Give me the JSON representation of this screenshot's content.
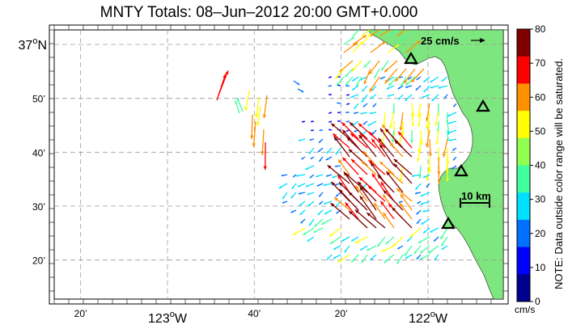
{
  "title": "MNTY Totals: 08–Jun–2012 20:00 GMT+0.000",
  "axes": {
    "lat_labels": [
      {
        "text": "37",
        "sup": "o",
        "suffix": "N",
        "lat": 37.0
      },
      {
        "text": "50’",
        "lat": 36.8333
      },
      {
        "text": "40’",
        "lat": 36.6667
      },
      {
        "text": "30’",
        "lat": 36.5
      },
      {
        "text": "20’",
        "lat": 36.3333
      }
    ],
    "lon_labels": [
      {
        "text": "20’",
        "lon": -123.3333
      },
      {
        "text": "123",
        "sup": "o",
        "suffix": "W",
        "lon": -123.0
      },
      {
        "text": "40’",
        "lon": -122.6667
      },
      {
        "text": "20’",
        "lon": -122.3333
      },
      {
        "text": "122",
        "sup": "o",
        "suffix": "W",
        "lon": -122.0
      }
    ]
  },
  "scale_arrow": {
    "label": "25 cm/s"
  },
  "scale_bar": {
    "label": "10 km"
  },
  "colorbar": {
    "ticks": [
      "80",
      "70",
      "60",
      "50",
      "40",
      "30",
      "20",
      "10",
      "0"
    ],
    "unit": "cm/s",
    "note": "NOTE: Data outside color range will be saturated.",
    "colors": [
      "#00008f",
      "#0000ff",
      "#0070ff",
      "#00e0ff",
      "#40ff9f",
      "#90ff50",
      "#ffff00",
      "#ff9000",
      "#ff0000",
      "#800000"
    ]
  },
  "colors": {
    "land": "#7ee67e",
    "sites": "#000000"
  },
  "radar_sites": [
    "site-1",
    "site-2",
    "site-3",
    "site-4"
  ]
}
